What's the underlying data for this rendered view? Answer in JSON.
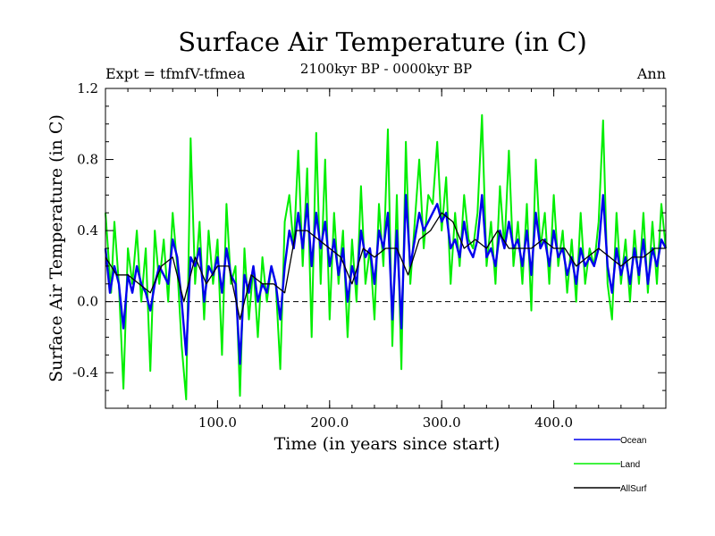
{
  "chart_data": {
    "type": "line",
    "title": "Surface Air Temperature (in C)",
    "subtitle": "2100kyr BP - 0000kyr BP",
    "left_label": "Expt = tfmfV-tfmea",
    "right_label": "Ann",
    "xlabel": "Time (in years since start)",
    "ylabel": "Surface Air Temperature (in C)",
    "xlim": [
      0,
      500
    ],
    "ylim": [
      -0.6,
      1.2
    ],
    "xticks": [
      100,
      200,
      300,
      400
    ],
    "xtick_labels": [
      "100.0",
      "200.0",
      "300.0",
      "400.0"
    ],
    "yticks": [
      -0.4,
      0.0,
      0.4,
      0.8,
      1.2
    ],
    "ytick_labels": [
      "-0.4",
      "0.0",
      "0.4",
      "0.8",
      "1.2"
    ],
    "zero_line": true,
    "legend_position": "bottom-right",
    "series": [
      {
        "name": "Land",
        "color": "#00ee00",
        "x": [
          0,
          5,
          8,
          12,
          16,
          20,
          24,
          28,
          32,
          36,
          40,
          44,
          48,
          52,
          56,
          60,
          64,
          68,
          72,
          76,
          80,
          84,
          88,
          92,
          96,
          100,
          104,
          108,
          112,
          116,
          120,
          124,
          128,
          132,
          136,
          140,
          144,
          148,
          152,
          156,
          160,
          164,
          168,
          172,
          176,
          180,
          184,
          188,
          192,
          196,
          200,
          204,
          208,
          212,
          216,
          220,
          224,
          228,
          232,
          236,
          240,
          244,
          248,
          252,
          256,
          260,
          264,
          268,
          272,
          276,
          280,
          284,
          288,
          292,
          296,
          300,
          304,
          308,
          312,
          316,
          320,
          324,
          328,
          332,
          336,
          340,
          344,
          348,
          352,
          356,
          360,
          364,
          368,
          372,
          376,
          380,
          384,
          388,
          392,
          396,
          400,
          404,
          408,
          412,
          416,
          420,
          424,
          428,
          432,
          436,
          440,
          444,
          448,
          452,
          456,
          460,
          464,
          468,
          472,
          476,
          480,
          484,
          488,
          492,
          496,
          500
        ],
        "values": [
          0.5,
          0.05,
          0.45,
          0.1,
          -0.49,
          0.3,
          0.1,
          0.4,
          0.0,
          0.3,
          -0.39,
          0.4,
          0.1,
          0.35,
          0.0,
          0.5,
          0.2,
          -0.25,
          -0.55,
          0.92,
          0.1,
          0.45,
          -0.1,
          0.4,
          0.1,
          0.35,
          -0.3,
          0.55,
          0.1,
          0.2,
          -0.53,
          0.3,
          -0.1,
          0.2,
          -0.2,
          0.25,
          0.0,
          0.2,
          0.1,
          -0.38,
          0.45,
          0.6,
          0.3,
          0.85,
          0.2,
          0.75,
          -0.2,
          0.95,
          0.1,
          0.8,
          -0.1,
          0.5,
          0.1,
          0.4,
          -0.2,
          0.35,
          0.0,
          0.65,
          0.1,
          0.3,
          -0.1,
          0.55,
          0.2,
          0.97,
          -0.25,
          0.6,
          -0.38,
          0.9,
          0.1,
          0.45,
          0.8,
          0.3,
          0.6,
          0.55,
          0.9,
          0.4,
          0.7,
          0.1,
          0.5,
          0.2,
          0.6,
          0.35,
          0.3,
          0.5,
          1.05,
          0.2,
          0.45,
          0.1,
          0.65,
          0.3,
          0.85,
          0.2,
          0.45,
          0.1,
          0.55,
          -0.05,
          0.8,
          0.3,
          0.5,
          0.1,
          0.6,
          0.2,
          0.4,
          0.05,
          0.35,
          0.0,
          0.5,
          0.1,
          0.3,
          0.2,
          0.45,
          1.02,
          0.1,
          -0.1,
          0.5,
          0.1,
          0.35,
          0.0,
          0.4,
          0.1,
          0.5,
          0.05,
          0.45,
          0.1,
          0.55,
          0.3
        ]
      },
      {
        "name": "Ocean",
        "color": "#0000ee",
        "x": [
          0,
          4,
          8,
          12,
          16,
          20,
          24,
          28,
          32,
          36,
          40,
          44,
          48,
          52,
          56,
          60,
          64,
          68,
          72,
          76,
          80,
          84,
          88,
          92,
          96,
          100,
          104,
          108,
          112,
          116,
          120,
          124,
          128,
          132,
          136,
          140,
          144,
          148,
          152,
          156,
          160,
          164,
          168,
          172,
          176,
          180,
          184,
          188,
          192,
          196,
          200,
          204,
          208,
          212,
          216,
          220,
          224,
          228,
          232,
          236,
          240,
          244,
          248,
          252,
          256,
          260,
          264,
          268,
          272,
          276,
          280,
          284,
          288,
          292,
          296,
          300,
          304,
          308,
          312,
          316,
          320,
          324,
          328,
          332,
          336,
          340,
          344,
          348,
          352,
          356,
          360,
          364,
          368,
          372,
          376,
          380,
          384,
          388,
          392,
          396,
          400,
          404,
          408,
          412,
          416,
          420,
          424,
          428,
          432,
          436,
          440,
          444,
          448,
          452,
          456,
          460,
          464,
          468,
          472,
          476,
          480,
          484,
          488,
          492,
          496,
          500
        ],
        "values": [
          0.3,
          0.05,
          0.2,
          0.1,
          -0.15,
          0.15,
          0.05,
          0.2,
          0.1,
          0.05,
          -0.05,
          0.1,
          0.2,
          0.15,
          0.1,
          0.35,
          0.25,
          0.0,
          -0.3,
          0.25,
          0.2,
          0.3,
          0.0,
          0.2,
          0.15,
          0.25,
          0.05,
          0.3,
          0.15,
          0.1,
          -0.35,
          0.15,
          0.05,
          0.2,
          0.0,
          0.1,
          0.05,
          0.2,
          0.1,
          -0.1,
          0.2,
          0.4,
          0.3,
          0.5,
          0.3,
          0.55,
          0.2,
          0.5,
          0.3,
          0.45,
          0.2,
          0.35,
          0.15,
          0.3,
          0.0,
          0.2,
          0.1,
          0.4,
          0.25,
          0.3,
          0.1,
          0.4,
          0.3,
          0.5,
          -0.1,
          0.4,
          -0.15,
          0.6,
          0.2,
          0.35,
          0.5,
          0.4,
          0.45,
          0.5,
          0.55,
          0.45,
          0.5,
          0.3,
          0.35,
          0.25,
          0.45,
          0.3,
          0.25,
          0.35,
          0.6,
          0.25,
          0.3,
          0.2,
          0.4,
          0.3,
          0.45,
          0.3,
          0.35,
          0.2,
          0.4,
          0.15,
          0.5,
          0.3,
          0.35,
          0.2,
          0.4,
          0.25,
          0.3,
          0.15,
          0.25,
          0.1,
          0.3,
          0.2,
          0.25,
          0.2,
          0.3,
          0.6,
          0.2,
          0.05,
          0.3,
          0.15,
          0.25,
          0.1,
          0.3,
          0.15,
          0.35,
          0.1,
          0.3,
          0.2,
          0.35,
          0.3
        ]
      },
      {
        "name": "AllSurf",
        "color": "#000000",
        "x": [
          0,
          10,
          20,
          30,
          40,
          50,
          60,
          70,
          80,
          90,
          100,
          110,
          120,
          130,
          140,
          150,
          160,
          170,
          180,
          190,
          200,
          210,
          220,
          230,
          240,
          250,
          260,
          270,
          280,
          290,
          300,
          310,
          320,
          330,
          340,
          350,
          360,
          370,
          380,
          390,
          400,
          410,
          420,
          430,
          440,
          450,
          460,
          470,
          480,
          490,
          500
        ],
        "values": [
          0.25,
          0.15,
          0.15,
          0.1,
          0.05,
          0.2,
          0.25,
          0.0,
          0.25,
          0.1,
          0.2,
          0.2,
          -0.1,
          0.15,
          0.1,
          0.1,
          0.05,
          0.4,
          0.4,
          0.35,
          0.3,
          0.25,
          0.1,
          0.3,
          0.25,
          0.3,
          0.3,
          0.15,
          0.35,
          0.4,
          0.5,
          0.45,
          0.3,
          0.35,
          0.3,
          0.4,
          0.3,
          0.3,
          0.3,
          0.35,
          0.3,
          0.3,
          0.2,
          0.25,
          0.3,
          0.25,
          0.2,
          0.25,
          0.25,
          0.3,
          0.3
        ]
      }
    ]
  }
}
